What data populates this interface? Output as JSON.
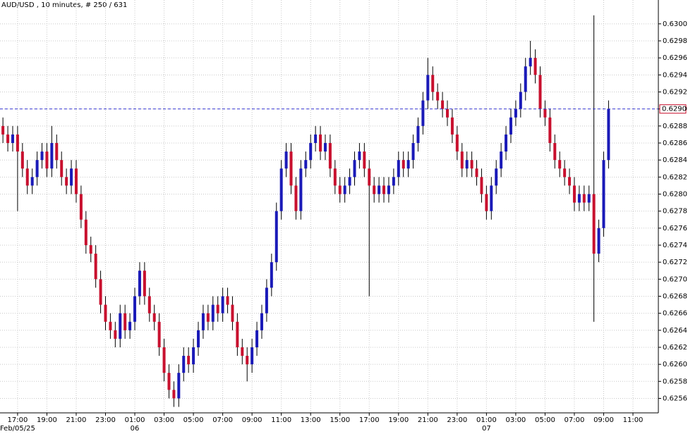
{
  "chart_data": {
    "type": "candlestick",
    "title": "AUD/USD , 10 minutes, # 250 / 631",
    "up_color": "#1a1ab8",
    "down_color": "#c8102e",
    "wick_color": "#000000",
    "grid": true,
    "xlim": [
      -0.6,
      134.2
    ],
    "ylim": [
      0.62543,
      0.63028
    ],
    "open": [
      0.6288,
      0.6287,
      0.6286,
      0.6287,
      0.6285,
      0.6283,
      0.6281,
      0.6282,
      0.6284,
      0.6285,
      0.6283,
      0.6286,
      0.6284,
      0.6282,
      0.6281,
      0.6283,
      0.628,
      0.6277,
      0.6274,
      0.6273,
      0.627,
      0.6267,
      0.6265,
      0.6264,
      0.6263,
      0.6266,
      0.6264,
      0.6265,
      0.6268,
      0.6271,
      0.6268,
      0.6266,
      0.6265,
      0.6262,
      0.6259,
      0.6257,
      0.6256,
      0.6259,
      0.6261,
      0.626,
      0.6262,
      0.6264,
      0.6266,
      0.6265,
      0.6267,
      0.6266,
      0.6268,
      0.6267,
      0.6265,
      0.6262,
      0.6261,
      0.626,
      0.6262,
      0.6264,
      0.6266,
      0.6269,
      0.6272,
      0.6278,
      0.6283,
      0.6285,
      0.6281,
      0.6278,
      0.6283,
      0.6284,
      0.6286,
      0.6287,
      0.6285,
      0.6286,
      0.6283,
      0.6281,
      0.628,
      0.6281,
      0.6282,
      0.6284,
      0.6285,
      0.6283,
      0.6281,
      0.628,
      0.6281,
      0.628,
      0.6281,
      0.6282,
      0.6284,
      0.6283,
      0.6284,
      0.6286,
      0.6288,
      0.6291,
      0.6294,
      0.6292,
      0.6291,
      0.629,
      0.6289,
      0.6287,
      0.6285,
      0.6283,
      0.6284,
      0.6283,
      0.6282,
      0.628,
      0.6278,
      0.6281,
      0.6283,
      0.6285,
      0.6287,
      0.6289,
      0.629,
      0.6292,
      0.6295,
      0.6296,
      0.6294,
      0.629,
      0.6289,
      0.6286,
      0.6284,
      0.6283,
      0.6282,
      0.6281,
      0.6279,
      0.628,
      0.6279,
      0.628,
      0.6273,
      0.6276,
      0.6284
    ],
    "high": [
      0.6289,
      0.6288,
      0.6288,
      0.6288,
      0.6286,
      0.6284,
      0.6283,
      0.6285,
      0.6286,
      0.6286,
      0.6288,
      0.6287,
      0.6285,
      0.6283,
      0.6284,
      0.6284,
      0.6281,
      0.6278,
      0.6275,
      0.6274,
      0.6271,
      0.6268,
      0.6266,
      0.6265,
      0.6267,
      0.6267,
      0.6266,
      0.6269,
      0.6272,
      0.6272,
      0.6269,
      0.6267,
      0.6266,
      0.6263,
      0.626,
      0.6258,
      0.626,
      0.6262,
      0.6262,
      0.6263,
      0.6265,
      0.6267,
      0.6267,
      0.6268,
      0.6268,
      0.6269,
      0.6269,
      0.6268,
      0.6266,
      0.6263,
      0.6262,
      0.6263,
      0.6265,
      0.6267,
      0.627,
      0.6273,
      0.6279,
      0.6284,
      0.6286,
      0.6286,
      0.6282,
      0.6284,
      0.6285,
      0.6287,
      0.6288,
      0.6288,
      0.6287,
      0.6287,
      0.6284,
      0.6282,
      0.6282,
      0.6283,
      0.6285,
      0.6286,
      0.6286,
      0.6284,
      0.6282,
      0.6282,
      0.6282,
      0.6282,
      0.6283,
      0.6285,
      0.6285,
      0.6285,
      0.6287,
      0.6289,
      0.6292,
      0.6296,
      0.6295,
      0.6293,
      0.6292,
      0.6291,
      0.629,
      0.6288,
      0.6286,
      0.6285,
      0.6285,
      0.6284,
      0.6283,
      0.6281,
      0.6282,
      0.6284,
      0.6286,
      0.6288,
      0.629,
      0.6291,
      0.6293,
      0.6296,
      0.6298,
      0.6297,
      0.6295,
      0.6291,
      0.629,
      0.6287,
      0.6285,
      0.6284,
      0.6283,
      0.6282,
      0.6281,
      0.6281,
      0.6281,
      0.6301,
      0.6277,
      0.6285,
      0.6291
    ],
    "low": [
      0.6286,
      0.6285,
      0.6285,
      0.6278,
      0.6282,
      0.628,
      0.628,
      0.6281,
      0.6283,
      0.6282,
      0.6282,
      0.6283,
      0.6281,
      0.628,
      0.628,
      0.6279,
      0.6276,
      0.6273,
      0.6272,
      0.6269,
      0.6266,
      0.6264,
      0.6263,
      0.6262,
      0.6262,
      0.6263,
      0.6263,
      0.6264,
      0.6267,
      0.6267,
      0.6265,
      0.6264,
      0.6261,
      0.6258,
      0.6256,
      0.6255,
      0.6255,
      0.6258,
      0.6259,
      0.6259,
      0.6261,
      0.6263,
      0.6264,
      0.6264,
      0.6265,
      0.6265,
      0.6266,
      0.6264,
      0.6261,
      0.626,
      0.6258,
      0.6259,
      0.6261,
      0.6263,
      0.6265,
      0.6268,
      0.6271,
      0.6277,
      0.6282,
      0.628,
      0.6277,
      0.6277,
      0.6282,
      0.6283,
      0.6285,
      0.6284,
      0.6284,
      0.6282,
      0.628,
      0.6279,
      0.6279,
      0.628,
      0.6281,
      0.6283,
      0.6282,
      0.6268,
      0.6279,
      0.6279,
      0.6279,
      0.6279,
      0.628,
      0.6281,
      0.6282,
      0.6282,
      0.6283,
      0.6285,
      0.6287,
      0.629,
      0.6291,
      0.629,
      0.6289,
      0.6288,
      0.6286,
      0.6284,
      0.6282,
      0.6282,
      0.6282,
      0.6281,
      0.6279,
      0.6277,
      0.6277,
      0.628,
      0.6282,
      0.6284,
      0.6286,
      0.6288,
      0.6289,
      0.6291,
      0.6294,
      0.6293,
      0.6289,
      0.6288,
      0.6285,
      0.6283,
      0.6282,
      0.6281,
      0.628,
      0.6278,
      0.6278,
      0.6278,
      0.6278,
      0.6265,
      0.6272,
      0.6275,
      0.6283
    ],
    "close": [
      0.6287,
      0.6286,
      0.6287,
      0.6285,
      0.6283,
      0.6281,
      0.6282,
      0.6284,
      0.6285,
      0.6283,
      0.6286,
      0.6284,
      0.6282,
      0.6281,
      0.6283,
      0.628,
      0.6277,
      0.6274,
      0.6273,
      0.627,
      0.6267,
      0.6265,
      0.6264,
      0.6263,
      0.6266,
      0.6264,
      0.6265,
      0.6268,
      0.6271,
      0.6268,
      0.6266,
      0.6265,
      0.6262,
      0.6259,
      0.6257,
      0.6256,
      0.6259,
      0.6261,
      0.626,
      0.6262,
      0.6264,
      0.6266,
      0.6265,
      0.6267,
      0.6266,
      0.6268,
      0.6267,
      0.6265,
      0.6262,
      0.6261,
      0.626,
      0.6262,
      0.6264,
      0.6266,
      0.6269,
      0.6272,
      0.6278,
      0.6283,
      0.6285,
      0.6281,
      0.6278,
      0.6283,
      0.6284,
      0.6286,
      0.6287,
      0.6285,
      0.6286,
      0.6283,
      0.6281,
      0.628,
      0.6281,
      0.6282,
      0.6284,
      0.6285,
      0.6283,
      0.6281,
      0.628,
      0.6281,
      0.628,
      0.6281,
      0.6282,
      0.6284,
      0.6283,
      0.6284,
      0.6286,
      0.6288,
      0.6291,
      0.6294,
      0.6292,
      0.6291,
      0.629,
      0.6289,
      0.6287,
      0.6285,
      0.6283,
      0.6284,
      0.6283,
      0.6282,
      0.628,
      0.6278,
      0.6281,
      0.6283,
      0.6285,
      0.6287,
      0.6289,
      0.629,
      0.6292,
      0.6295,
      0.6296,
      0.6294,
      0.629,
      0.6289,
      0.6286,
      0.6284,
      0.6283,
      0.6282,
      0.6281,
      0.6279,
      0.628,
      0.6279,
      0.628,
      0.6273,
      0.6276,
      0.6284,
      0.629
    ],
    "last_price": {
      "value": 0.629,
      "label": "0.6290"
    },
    "yticks": [
      0.6256,
      0.6258,
      {
        "value": 0.626,
        "label": "0.6260"
      },
      0.6262,
      0.6264,
      0.6266,
      0.6268,
      {
        "value": 0.627,
        "label": "0.6270"
      },
      0.6272,
      0.6274,
      0.6276,
      0.6278,
      {
        "value": 0.628,
        "label": "0.6280"
      },
      0.6282,
      0.6284,
      0.6286,
      0.6288,
      {
        "value": 0.629,
        "label": "0.6290"
      },
      0.6292,
      0.6294,
      0.6296,
      0.6298,
      {
        "value": 0.63,
        "label": "0.6300"
      }
    ],
    "xticks": [
      {
        "value": 3,
        "label": "17:00"
      },
      {
        "value": 9,
        "label": "19:00"
      },
      {
        "value": 15,
        "label": "21:00"
      },
      {
        "value": 21,
        "label": "23:00"
      },
      {
        "value": 27,
        "label": "01:00"
      },
      {
        "value": 33,
        "label": "03:00"
      },
      {
        "value": 39,
        "label": "05:00"
      },
      {
        "value": 45,
        "label": "07:00"
      },
      {
        "value": 51,
        "label": "09:00"
      },
      {
        "value": 57,
        "label": "11:00"
      },
      {
        "value": 63,
        "label": "13:00"
      },
      {
        "value": 69,
        "label": "15:00"
      },
      {
        "value": 75,
        "label": "17:00"
      },
      {
        "value": 81,
        "label": "19:00"
      },
      {
        "value": 87,
        "label": "21:00"
      },
      {
        "value": 93,
        "label": "23:00"
      },
      {
        "value": 99,
        "label": "01:00"
      },
      {
        "value": 105,
        "label": "03:00"
      },
      {
        "value": 111,
        "label": "05:00"
      },
      {
        "value": 117,
        "label": "07:00"
      },
      {
        "value": 123,
        "label": "09:00"
      },
      {
        "value": 129,
        "label": "11:00"
      }
    ],
    "date_labels": [
      {
        "value": 3,
        "label": "Feb/05/25"
      },
      {
        "value": 27,
        "label": "06"
      },
      {
        "value": 99,
        "label": "07"
      }
    ]
  }
}
